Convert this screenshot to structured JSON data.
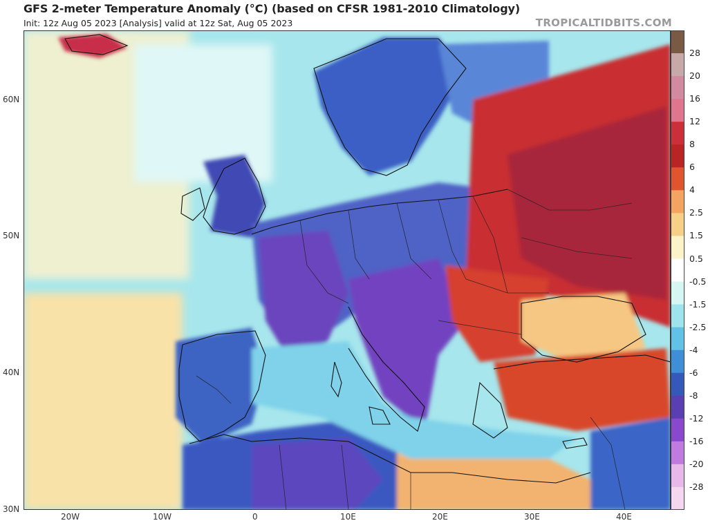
{
  "header": {
    "title": "GFS 2-meter Temperature Anomaly (°C) (based on CFSR 1981-2010 Climatology)",
    "subtitle": "Init: 12z Aug 05 2023   [Analysis]   valid at 12z Sat, Aug 05 2023",
    "brand": "TROPICALTIDBITS.COM"
  },
  "axes": {
    "lat_labels": [
      "60N",
      "50N",
      "40N",
      "30N"
    ],
    "lon_labels": [
      "20W",
      "10W",
      "0",
      "10E",
      "20E",
      "30E",
      "40E"
    ]
  },
  "colorbar": {
    "labels": [
      "28",
      "20",
      "16",
      "12",
      "8",
      "6",
      "4",
      "2.5",
      "1.5",
      "0.5",
      "-0.5",
      "-1.5",
      "-2.5",
      "-4",
      "-6",
      "-8",
      "-12",
      "-16",
      "-20",
      "-28"
    ],
    "colors": [
      "#7a5a44",
      "#c8a9a9",
      "#d18aa0",
      "#e07590",
      "#cc2e3a",
      "#bb2424",
      "#e0552d",
      "#f4a460",
      "#f8cf86",
      "#fdf3c8",
      "#ffffff",
      "#d6f6f4",
      "#9fe4ec",
      "#62c1e7",
      "#3e8ed8",
      "#3558bb",
      "#5a3fb3",
      "#8a48cf",
      "#c17be0",
      "#e8b8ea",
      "#f4d6ee"
    ]
  }
}
